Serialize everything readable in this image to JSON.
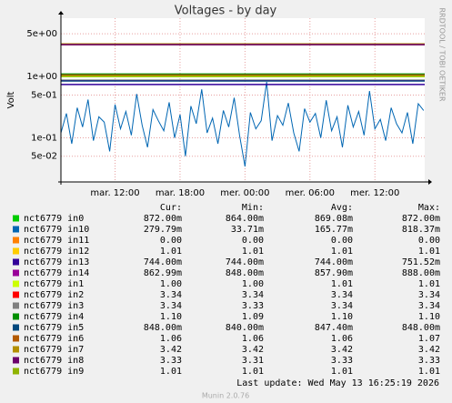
{
  "chart_data": {
    "type": "line",
    "title": "Voltages - by day",
    "y_label": "Volt",
    "side_label": "RRDTOOL / TOBI OETIKER",
    "log_scale": true,
    "grid": true,
    "ylim": [
      0.019,
      9
    ],
    "yticks": [
      {
        "value": 5,
        "label": "5e+00"
      },
      {
        "value": 1,
        "label": "1e+00"
      },
      {
        "value": 0.5,
        "label": "5e-01"
      },
      {
        "value": 0.1,
        "label": "1e-01"
      },
      {
        "value": 0.05,
        "label": "5e-02"
      }
    ],
    "xlim": [
      7,
      40.6
    ],
    "xticks": [
      {
        "value": 12,
        "label": "mar. 12:00"
      },
      {
        "value": 18,
        "label": "mar. 18:00"
      },
      {
        "value": 24,
        "label": "mer. 00:00"
      },
      {
        "value": 30,
        "label": "mer. 06:00"
      },
      {
        "value": 36,
        "label": "mer. 12:00"
      }
    ],
    "x": [
      7.0,
      7.5,
      8.0,
      8.5,
      9.0,
      9.5,
      10.0,
      10.5,
      11.0,
      11.5,
      12.0,
      12.5,
      13.0,
      13.5,
      14.0,
      14.5,
      15.0,
      15.5,
      16.0,
      16.5,
      17.0,
      17.5,
      18.0,
      18.5,
      19.0,
      19.5,
      20.0,
      20.5,
      21.0,
      21.5,
      22.0,
      22.5,
      23.0,
      23.5,
      24.0,
      24.5,
      25.0,
      25.5,
      26.0,
      26.5,
      27.0,
      27.5,
      28.0,
      28.5,
      29.0,
      29.5,
      30.0,
      30.5,
      31.0,
      31.5,
      32.0,
      32.5,
      33.0,
      33.5,
      34.0,
      34.5,
      35.0,
      35.5,
      36.0,
      36.5,
      37.0,
      37.5,
      38.0,
      38.5,
      39.0,
      39.5,
      40.0,
      40.5
    ],
    "stat_headers": [
      "Cur:",
      "Min:",
      "Avg:",
      "Max:"
    ],
    "series": [
      {
        "name": "nct6779 in0",
        "color": "#00cc00",
        "level": 0.872,
        "stats": [
          "872.00m",
          "864.00m",
          "869.08m",
          "872.00m"
        ]
      },
      {
        "name": "nct6779 in10",
        "color": "#0066b3",
        "values": [
          0.12,
          0.25,
          0.08,
          0.31,
          0.15,
          0.42,
          0.09,
          0.22,
          0.18,
          0.06,
          0.35,
          0.14,
          0.27,
          0.11,
          0.52,
          0.16,
          0.07,
          0.29,
          0.19,
          0.13,
          0.38,
          0.1,
          0.24,
          0.05,
          0.33,
          0.17,
          0.62,
          0.12,
          0.21,
          0.08,
          0.28,
          0.15,
          0.45,
          0.11,
          0.034,
          0.26,
          0.14,
          0.19,
          0.818,
          0.09,
          0.23,
          0.16,
          0.37,
          0.12,
          0.06,
          0.3,
          0.18,
          0.25,
          0.1,
          0.41,
          0.13,
          0.22,
          0.07,
          0.34,
          0.15,
          0.27,
          0.11,
          0.58,
          0.14,
          0.2,
          0.09,
          0.31,
          0.17,
          0.12,
          0.26,
          0.08,
          0.36,
          0.2798
        ],
        "stats": [
          "279.79m",
          "33.71m",
          "165.77m",
          "818.37m"
        ]
      },
      {
        "name": "nct6779 in11",
        "color": "#ff8000",
        "level": 0,
        "stats": [
          "0.00",
          "0.00",
          "0.00",
          "0.00"
        ]
      },
      {
        "name": "nct6779 in12",
        "color": "#ffcc00",
        "level": 1.01,
        "stats": [
          "1.01",
          "1.01",
          "1.01",
          "1.01"
        ]
      },
      {
        "name": "nct6779 in13",
        "color": "#330099",
        "level": 0.744,
        "stats": [
          "744.00m",
          "744.00m",
          "744.00m",
          "751.52m"
        ]
      },
      {
        "name": "nct6779 in14",
        "color": "#990099",
        "level": 0.863,
        "stats": [
          "862.99m",
          "848.00m",
          "857.90m",
          "888.00m"
        ]
      },
      {
        "name": "nct6779 in1",
        "color": "#ccff00",
        "level": 1.0,
        "stats": [
          "1.00",
          "1.00",
          "1.01",
          "1.01"
        ]
      },
      {
        "name": "nct6779 in2",
        "color": "#ff0000",
        "level": 3.34,
        "stats": [
          "3.34",
          "3.34",
          "3.34",
          "3.34"
        ]
      },
      {
        "name": "nct6779 in3",
        "color": "#808080",
        "level": 3.34,
        "stats": [
          "3.34",
          "3.33",
          "3.34",
          "3.34"
        ]
      },
      {
        "name": "nct6779 in4",
        "color": "#008f00",
        "level": 1.1,
        "stats": [
          "1.10",
          "1.09",
          "1.10",
          "1.10"
        ]
      },
      {
        "name": "nct6779 in5",
        "color": "#00487d",
        "level": 0.848,
        "stats": [
          "848.00m",
          "840.00m",
          "847.40m",
          "848.00m"
        ]
      },
      {
        "name": "nct6779 in6",
        "color": "#b35a00",
        "level": 1.06,
        "stats": [
          "1.06",
          "1.06",
          "1.06",
          "1.07"
        ]
      },
      {
        "name": "nct6779 in7",
        "color": "#b38f00",
        "level": 3.42,
        "stats": [
          "3.42",
          "3.42",
          "3.42",
          "3.42"
        ]
      },
      {
        "name": "nct6779 in8",
        "color": "#6b006b",
        "level": 3.33,
        "stats": [
          "3.33",
          "3.31",
          "3.33",
          "3.33"
        ]
      },
      {
        "name": "nct6779 in9",
        "color": "#8fb300",
        "level": 1.01,
        "stats": [
          "1.01",
          "1.01",
          "1.01",
          "1.01"
        ]
      }
    ],
    "last_update": "Last update: Wed May 13 16:25:19 2026",
    "footer": "Munin 2.0.76"
  }
}
